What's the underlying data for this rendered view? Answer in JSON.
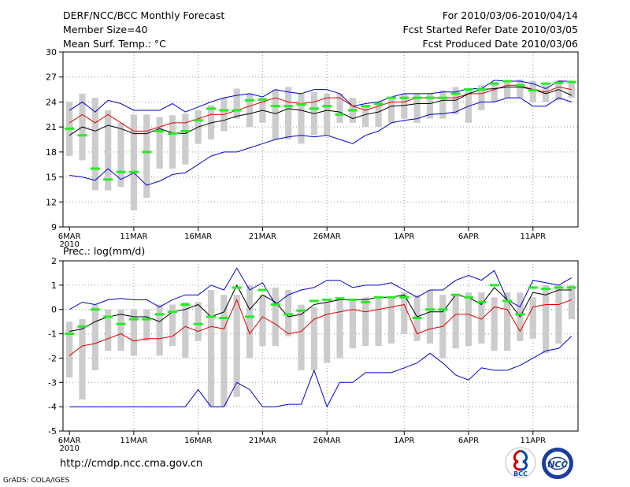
{
  "header": {
    "title": "DERF/NCC/BCC Monthly Forecast",
    "member_size": "Member Size=40",
    "variable": "Mean Surf. Temp.: °C",
    "period": "For 2010/03/06-2010/04/14",
    "fcst_started": "Fcst Started Refer Date 2010/03/05",
    "fcst_produced": "Fcst Produced Date 2010/03/06"
  },
  "footer": {
    "url": "http://cmdp.ncc.cma.gov.cn",
    "credit": "GrADS: COLA/IGES",
    "logo_bcc": "BCC",
    "logo_ncc": "NCC"
  },
  "colors": {
    "box": "#cccccc",
    "obs": "#22ee22",
    "mean": "#000000",
    "median": "#aa0000",
    "upper": "#0000cc",
    "lower": "#0000cc",
    "red_line": "#dd0000"
  },
  "chart_data": [
    {
      "type": "box",
      "title": "Mean Surf. Temp.: °C",
      "ylim": [
        9,
        30
      ],
      "yticks": [
        9,
        12,
        15,
        18,
        21,
        24,
        27,
        30
      ],
      "xlim": [
        0.5,
        40.5
      ],
      "xticks": [
        {
          "day": 1,
          "label": "6MAR",
          "sub": "2010"
        },
        {
          "day": 6,
          "label": "11MAR"
        },
        {
          "day": 11,
          "label": "16MAR"
        },
        {
          "day": 16,
          "label": "21MAR"
        },
        {
          "day": 21,
          "label": "26MAR"
        },
        {
          "day": 27,
          "label": "1APR"
        },
        {
          "day": 32,
          "label": "6APR"
        },
        {
          "day": 37,
          "label": "11APR"
        }
      ],
      "box_low": [
        17.5,
        17,
        13.4,
        13.4,
        13.8,
        11,
        12.5,
        16,
        16,
        16.5,
        19,
        19.5,
        20.5,
        22,
        21,
        21.5,
        19.5,
        19.5,
        19,
        20,
        20,
        21.5,
        21.5,
        21,
        21,
        21.5,
        22,
        21.5,
        22,
        22,
        22.5,
        21.5,
        23,
        24,
        24.5,
        24.5,
        24,
        24,
        24.2,
        24.5
      ],
      "box_high": [
        24,
        25,
        24.5,
        23,
        21.5,
        22.5,
        22.5,
        22.2,
        22.4,
        22.6,
        23,
        23.6,
        24.5,
        25.6,
        25,
        24.5,
        25.5,
        25.8,
        25,
        25.2,
        25,
        25,
        24.5,
        23.5,
        24,
        24.5,
        25,
        25,
        25,
        25.4,
        25.8,
        25.5,
        26,
        26.4,
        26.6,
        26.7,
        26.5,
        26,
        26.6,
        26.5
      ],
      "obs": [
        20.8,
        20,
        16,
        14.7,
        15.6,
        15.6,
        18,
        20.5,
        20.2,
        20.5,
        21.8,
        23.2,
        23,
        23,
        24.2,
        24.3,
        23.5,
        23.5,
        23.7,
        23.2,
        23.5,
        22.5,
        23,
        23.5,
        23.8,
        24.5,
        24.5,
        24.5,
        24.5,
        24.5,
        25,
        25.5,
        25.5,
        26.2,
        26.5,
        26,
        25.4,
        26.2,
        26.3,
        26.4
      ],
      "series": [
        {
          "name": "upper",
          "values": [
            23,
            24,
            22.8,
            24.2,
            23.8,
            23,
            23,
            23,
            23.8,
            22.8,
            23.4,
            24,
            24.5,
            24.8,
            25,
            24.6,
            25.5,
            25.2,
            25,
            25.5,
            25.5,
            25,
            23.5,
            23.8,
            24,
            24.6,
            25,
            25,
            25,
            25.2,
            25.2,
            25.6,
            25.6,
            26.6,
            26.5,
            26.5,
            26.2,
            25.6,
            26.5,
            26.5
          ]
        },
        {
          "name": "red",
          "values": [
            21.5,
            22.5,
            21.5,
            22.5,
            21.5,
            20.5,
            20.5,
            21,
            21.5,
            21.5,
            22,
            22.5,
            22.5,
            23,
            23.5,
            24,
            24.5,
            24,
            23.8,
            24,
            24.5,
            24.5,
            23.5,
            23,
            23.5,
            24,
            24,
            24.5,
            24.5,
            24.5,
            24.5,
            25,
            25,
            25.5,
            26,
            26,
            25.5,
            25.2,
            25.8,
            25.5
          ]
        },
        {
          "name": "mean",
          "values": [
            20,
            21,
            20.5,
            21.2,
            20.8,
            20.2,
            20.2,
            20.8,
            20.3,
            20.2,
            21,
            21.5,
            21.8,
            22.3,
            22.6,
            23,
            22.6,
            23.2,
            23,
            22.6,
            23,
            22.8,
            22,
            22.5,
            22.8,
            23.5,
            23.6,
            23.8,
            23.8,
            24.2,
            24.2,
            25,
            25.5,
            25.6,
            25.8,
            25.8,
            25.5,
            25,
            25.5,
            24.8
          ]
        },
        {
          "name": "lower",
          "values": [
            15.2,
            15,
            14.6,
            16,
            14.7,
            15.5,
            14,
            14.5,
            15.3,
            15.5,
            16.5,
            17.5,
            18,
            18,
            18.5,
            19,
            19.5,
            19.8,
            20,
            19.8,
            20,
            19.5,
            19,
            20,
            20.5,
            21.5,
            21.8,
            22,
            22.5,
            22.6,
            22.8,
            23.5,
            24,
            24,
            24.5,
            24.5,
            23.5,
            23.5,
            24.5,
            24
          ]
        }
      ]
    },
    {
      "type": "box",
      "title": "Prec.: log(mm/d)",
      "ylim": [
        -5,
        2
      ],
      "yticks": [
        -5,
        -4,
        -3,
        -2,
        -1,
        0,
        1,
        2
      ],
      "xlim": [
        0.5,
        40.5
      ],
      "xticks": [
        {
          "day": 1,
          "label": "6MAR",
          "sub": "2010"
        },
        {
          "day": 6,
          "label": "11MAR"
        },
        {
          "day": 11,
          "label": "16MAR"
        },
        {
          "day": 16,
          "label": "21MAR"
        },
        {
          "day": 21,
          "label": "26MAR"
        },
        {
          "day": 27,
          "label": "1APR"
        },
        {
          "day": 32,
          "label": "6APR"
        },
        {
          "day": 37,
          "label": "11APR"
        }
      ],
      "box_low": [
        -2.8,
        -3.7,
        -2.5,
        -1.7,
        -1.7,
        -1.9,
        -1.3,
        -1.9,
        -1.5,
        -2,
        -1.3,
        -4,
        -4,
        -3.6,
        -2,
        -1.5,
        -1.5,
        -1.1,
        -2.5,
        -2.5,
        -2.2,
        -2,
        -1.6,
        -1.5,
        -1.5,
        -1.4,
        -1,
        -1.3,
        -1.4,
        -2,
        -1.6,
        -1.5,
        -1.4,
        -1.7,
        -1.7,
        -1.3,
        -1.2,
        -1.8,
        -1.4,
        -0.4
      ],
      "box_high": [
        -0.5,
        -0.4,
        0.2,
        0,
        0,
        0,
        0,
        0.2,
        0.2,
        0.3,
        0.3,
        0.8,
        0.6,
        0.6,
        1,
        0.6,
        0.9,
        0.8,
        0.2,
        0.1,
        0.3,
        0.5,
        0.4,
        0.5,
        0.5,
        0.5,
        0.7,
        0.6,
        0.8,
        0.6,
        0.6,
        0.7,
        0.7,
        0.5,
        0.7,
        0.7,
        0.5,
        1,
        1,
        1
      ],
      "obs": [
        -1,
        -0.7,
        0,
        -0.3,
        -0.6,
        -0.4,
        -0.4,
        -0.2,
        -0.1,
        0.2,
        -0.6,
        -0.3,
        -0.35,
        0.9,
        -0.3,
        0.8,
        0.2,
        -0.2,
        -0.05,
        0.35,
        0.4,
        0.45,
        0.4,
        0.3,
        0.5,
        0.5,
        0.5,
        -0.35,
        0,
        0,
        0.6,
        0.5,
        0.3,
        1,
        0.35,
        -0.2,
        0.9,
        0.85,
        0.9,
        0.9
      ],
      "series": [
        {
          "name": "upper",
          "values": [
            0,
            0.3,
            0.2,
            0.4,
            0.45,
            0.4,
            0.4,
            0.1,
            0.4,
            0.6,
            0.6,
            1,
            0.8,
            1.7,
            0.8,
            1.1,
            0.2,
            0.6,
            0.8,
            0.9,
            1.2,
            1.2,
            0.9,
            1,
            1,
            1.1,
            0.8,
            0.5,
            0.8,
            0.8,
            1.2,
            1.4,
            1.2,
            1.6,
            0.4,
            0.1,
            1.2,
            1.1,
            1,
            1.3
          ]
        },
        {
          "name": "mean",
          "values": [
            -0.9,
            -0.8,
            -0.5,
            -0.3,
            -0.2,
            -0.3,
            -0.3,
            -0.5,
            -0.1,
            0,
            0.2,
            -0.3,
            -0.1,
            1,
            0,
            0.6,
            0.3,
            -0.3,
            -0.2,
            0.2,
            0.3,
            0.4,
            0.4,
            0.4,
            0.5,
            0.5,
            0.6,
            -0.3,
            -0.1,
            -0.1,
            0.6,
            0.5,
            0.2,
            0.9,
            0.4,
            -0.3,
            0.7,
            0.6,
            0.8,
            0.8
          ]
        },
        {
          "name": "red",
          "values": [
            -1.9,
            -1.5,
            -1.4,
            -1.2,
            -1,
            -1.3,
            -1.2,
            -1.2,
            -1.1,
            -0.7,
            -0.9,
            -0.7,
            -0.8,
            0.4,
            -1,
            -0.3,
            -0.6,
            -1,
            -0.9,
            -0.4,
            -0.2,
            -0.1,
            0,
            -0.1,
            0,
            0.1,
            0.2,
            -1,
            -0.8,
            -0.7,
            -0.2,
            -0.2,
            -0.4,
            0.1,
            0,
            -0.9,
            0.1,
            0.2,
            0.2,
            0.4
          ]
        },
        {
          "name": "lower",
          "values": [
            -4,
            -4,
            -4,
            -4,
            -4,
            -4,
            -4,
            -4,
            -4,
            -4,
            -3.3,
            -4,
            -4,
            -3,
            -3.3,
            -4,
            -4,
            -3.9,
            -3.9,
            -2.5,
            -4,
            -3,
            -3,
            -2.6,
            -2.6,
            -2.6,
            -2.4,
            -2.2,
            -1.8,
            -2.2,
            -2.7,
            -2.9,
            -2.4,
            -2.5,
            -2.5,
            -2.3,
            -2,
            -1.7,
            -1.6,
            -1.1
          ]
        }
      ]
    }
  ]
}
